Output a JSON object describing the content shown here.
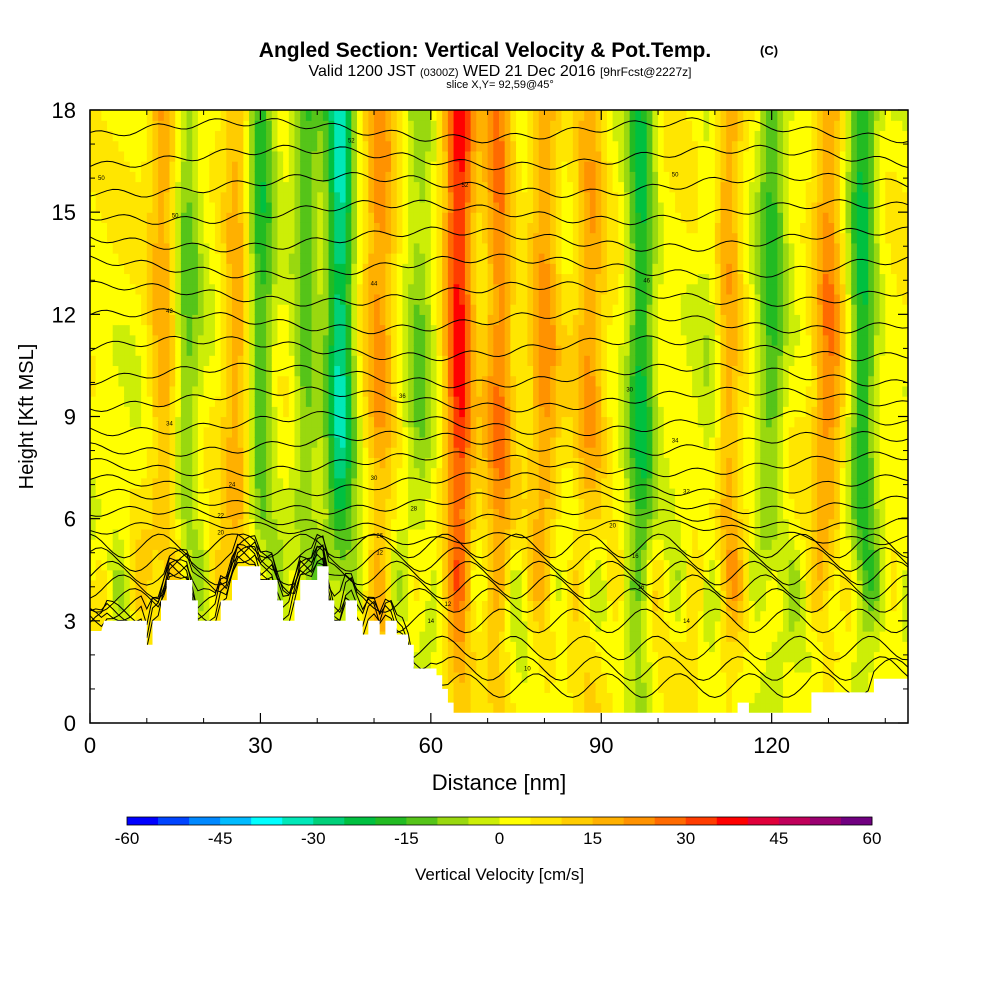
{
  "chart_data": {
    "type": "heatmap",
    "title": "Angled Section: Vertical Velocity & Pot.Temp.",
    "title_units": "(C)",
    "subtitle_main_a": "Valid 1200 JST",
    "subtitle_small_a": "(0300Z)",
    "subtitle_main_b": "WED 21 Dec 2016",
    "subtitle_small_b": "[9hrFcst@2227z]",
    "subtitle2": "slice X,Y= 92,59@45°",
    "xlabel": "Distance [nm]",
    "ylabel": "Height [Kft MSL]",
    "xlim": [
      0,
      144
    ],
    "ylim": [
      0,
      18
    ],
    "x_ticks": [
      "0",
      "30",
      "60",
      "90",
      "120"
    ],
    "x_tick_values": [
      0,
      30,
      60,
      90,
      120
    ],
    "y_ticks": [
      "0",
      "3",
      "6",
      "9",
      "12",
      "15",
      "18"
    ],
    "y_tick_values": [
      0,
      3,
      6,
      9,
      12,
      15,
      18
    ],
    "colorbar": {
      "label": "Vertical Velocity [cm/s]",
      "range": [
        -60,
        60
      ],
      "tick_labels": [
        "-60",
        "-45",
        "-30",
        "-15",
        "0",
        "15",
        "30",
        "45",
        "60"
      ],
      "colors": [
        "#0000ff",
        "#0044ff",
        "#0088ff",
        "#00bbff",
        "#00ffff",
        "#00e8b8",
        "#00d079",
        "#00c040",
        "#22bb22",
        "#55c419",
        "#99d80f",
        "#ccee07",
        "#ffff00",
        "#ffe600",
        "#ffcc00",
        "#ffb000",
        "#ff9200",
        "#ff6a00",
        "#ff3c00",
        "#ff0000",
        "#e0003a",
        "#c0005a",
        "#9a0070",
        "#700080"
      ]
    },
    "terrain": [
      [
        0,
        2.7
      ],
      [
        2,
        2.7
      ],
      [
        2.5,
        3.0
      ],
      [
        10,
        3.0
      ],
      [
        10,
        2.3
      ],
      [
        11,
        2.3
      ],
      [
        11,
        3.0
      ],
      [
        12.5,
        3.0
      ],
      [
        12.5,
        3.6
      ],
      [
        13.5,
        3.6
      ],
      [
        13.5,
        4.2
      ],
      [
        18,
        4.2
      ],
      [
        18,
        3.6
      ],
      [
        19,
        3.6
      ],
      [
        19,
        3.0
      ],
      [
        23,
        3.0
      ],
      [
        23,
        3.6
      ],
      [
        25,
        3.6
      ],
      [
        25,
        4.2
      ],
      [
        26,
        4.2
      ],
      [
        26,
        4.6
      ],
      [
        30,
        4.6
      ],
      [
        30,
        4.2
      ],
      [
        33,
        4.2
      ],
      [
        33,
        3.6
      ],
      [
        34,
        3.6
      ],
      [
        34,
        3.0
      ],
      [
        36,
        3.0
      ],
      [
        36,
        3.6
      ],
      [
        37,
        3.6
      ],
      [
        37,
        4.2
      ],
      [
        40,
        4.2
      ],
      [
        40,
        4.6
      ],
      [
        42,
        4.6
      ],
      [
        42,
        3.6
      ],
      [
        43,
        3.6
      ],
      [
        43,
        3.0
      ],
      [
        45,
        3.0
      ],
      [
        45,
        3.6
      ],
      [
        47,
        3.6
      ],
      [
        47,
        3.0
      ],
      [
        48,
        3.0
      ],
      [
        48,
        2.6
      ],
      [
        49,
        2.6
      ],
      [
        49,
        3.0
      ],
      [
        51,
        3.0
      ],
      [
        51,
        2.6
      ],
      [
        52,
        2.6
      ],
      [
        52,
        3.0
      ],
      [
        54,
        3.0
      ],
      [
        54,
        2.6
      ],
      [
        56,
        2.6
      ],
      [
        56,
        2.3
      ],
      [
        57,
        2.3
      ],
      [
        57,
        1.6
      ],
      [
        61,
        1.6
      ],
      [
        61,
        1.4
      ],
      [
        62,
        1.4
      ],
      [
        62,
        1.0
      ],
      [
        63,
        1.0
      ],
      [
        63,
        0.6
      ],
      [
        64,
        0.6
      ],
      [
        64,
        0.3
      ],
      [
        75,
        0.3
      ],
      [
        90,
        0.3
      ],
      [
        114,
        0.3
      ],
      [
        114,
        0.6
      ],
      [
        116,
        0.6
      ],
      [
        116,
        0.3
      ],
      [
        127,
        0.3
      ],
      [
        127,
        0.9
      ],
      [
        138,
        0.9
      ],
      [
        138,
        1.3
      ],
      [
        144,
        1.3
      ]
    ],
    "updrafts": [
      {
        "x": 13,
        "v": 16
      },
      {
        "x": 26,
        "v": 16
      },
      {
        "x": 51,
        "v": 18
      },
      {
        "x": 65,
        "v": 34
      },
      {
        "x": 72,
        "v": 22
      },
      {
        "x": 80,
        "v": 18
      },
      {
        "x": 88,
        "v": 16
      },
      {
        "x": 112,
        "v": 20
      },
      {
        "x": 130,
        "v": 20
      }
    ],
    "downdrafts": [
      {
        "x": 17,
        "v": -14
      },
      {
        "x": 30,
        "v": -20
      },
      {
        "x": 38,
        "v": -16
      },
      {
        "x": 44,
        "v": -34
      },
      {
        "x": 58,
        "v": -12
      },
      {
        "x": 97,
        "v": -24
      },
      {
        "x": 110,
        "v": -10
      },
      {
        "x": 120,
        "v": -18
      },
      {
        "x": 136,
        "v": -24
      }
    ],
    "isentrope_labels": [
      {
        "x": 2,
        "y": 16.0,
        "text": "50"
      },
      {
        "x": 15,
        "y": 14.9,
        "text": "50"
      },
      {
        "x": 14,
        "y": 12.1,
        "text": "42"
      },
      {
        "x": 14,
        "y": 8.8,
        "text": "34"
      },
      {
        "x": 25,
        "y": 7.0,
        "text": "24"
      },
      {
        "x": 23,
        "y": 6.1,
        "text": "22"
      },
      {
        "x": 23,
        "y": 5.6,
        "text": "20"
      },
      {
        "x": 46,
        "y": 17.1,
        "text": "52"
      },
      {
        "x": 50,
        "y": 12.9,
        "text": "44"
      },
      {
        "x": 55,
        "y": 9.6,
        "text": "36"
      },
      {
        "x": 50,
        "y": 7.2,
        "text": "30"
      },
      {
        "x": 57,
        "y": 6.3,
        "text": "28"
      },
      {
        "x": 51,
        "y": 5.5,
        "text": "26"
      },
      {
        "x": 51,
        "y": 5.0,
        "text": "12"
      },
      {
        "x": 63,
        "y": 3.5,
        "text": "12"
      },
      {
        "x": 60,
        "y": 3.0,
        "text": "14"
      },
      {
        "x": 66,
        "y": 15.8,
        "text": "52"
      },
      {
        "x": 77,
        "y": 1.6,
        "text": "10"
      },
      {
        "x": 92,
        "y": 5.8,
        "text": "20"
      },
      {
        "x": 96,
        "y": 4.9,
        "text": "16"
      },
      {
        "x": 97,
        "y": 4.0,
        "text": "16"
      },
      {
        "x": 95,
        "y": 9.8,
        "text": "30"
      },
      {
        "x": 98,
        "y": 13.0,
        "text": "46"
      },
      {
        "x": 103,
        "y": 16.1,
        "text": "50"
      },
      {
        "x": 103,
        "y": 8.3,
        "text": "34"
      },
      {
        "x": 105,
        "y": 6.8,
        "text": "32"
      },
      {
        "x": 105,
        "y": 3.0,
        "text": "14"
      }
    ],
    "isentrope_levels": [
      1.1,
      1.6,
      2.2,
      3.0,
      3.6,
      4.0,
      4.4,
      4.8,
      5.2,
      5.6,
      6.0,
      6.5,
      7.0,
      7.6,
      8.2,
      8.8,
      9.5,
      10.2,
      11.0,
      11.8,
      12.6,
      13.4,
      14.2,
      15.0,
      15.8,
      16.6,
      17.4
    ]
  }
}
